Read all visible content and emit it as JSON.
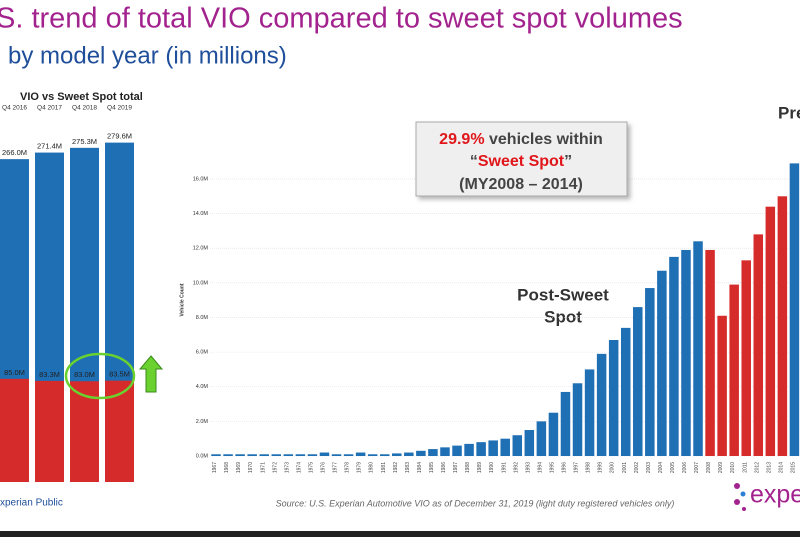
{
  "slide": {
    "title": "S. trend of total VIO compared to sweet spot volumes",
    "subtitle": "by model year (in millions)",
    "footer": "xperian Public",
    "logo": "exper",
    "source": "Source: U.S. Experian Automotive VIO as of December 31, 2019  (light duty registered vehicles only)"
  },
  "chart_data": [
    {
      "type": "bar",
      "title": "VIO vs Sweet Spot total",
      "categories": [
        "Q4 2016",
        "Q4 2017",
        "Q4 2018",
        "Q4 2019"
      ],
      "ylim": [
        0,
        290
      ],
      "series": [
        {
          "color": "#1f6fb5",
          "values": [
            266.0,
            271.4,
            275.3,
            279.6
          ],
          "value_labels": [
            "266.0M",
            "271.4M",
            "275.3M",
            "279.6M"
          ]
        },
        {
          "color": "#d62b2b",
          "values": [
            85.0,
            83.3,
            83.0,
            83.5
          ],
          "value_labels": [
            "85.0M",
            "83.3M",
            "83.0M",
            "83.5M"
          ]
        }
      ]
    },
    {
      "type": "bar",
      "ylabel": "Vehicle Count",
      "categories": [
        "1967",
        "1968",
        "1969",
        "1970",
        "1971",
        "1972",
        "1973",
        "1974",
        "1975",
        "1976",
        "1977",
        "1978",
        "1979",
        "1980",
        "1981",
        "1982",
        "1983",
        "1984",
        "1985",
        "1986",
        "1987",
        "1988",
        "1989",
        "1990",
        "1991",
        "1992",
        "1993",
        "1994",
        "1995",
        "1996",
        "1997",
        "1998",
        "1999",
        "2000",
        "2001",
        "2002",
        "2003",
        "2004",
        "2005",
        "2006",
        "2007",
        "2008",
        "2009",
        "2010",
        "2011",
        "2012",
        "2013",
        "2014",
        "2015"
      ],
      "values": [
        0.1,
        0.1,
        0.1,
        0.1,
        0.1,
        0.1,
        0.1,
        0.1,
        0.1,
        0.2,
        0.1,
        0.1,
        0.2,
        0.1,
        0.1,
        0.15,
        0.2,
        0.3,
        0.4,
        0.5,
        0.6,
        0.7,
        0.8,
        0.9,
        1.0,
        1.2,
        1.5,
        2.0,
        2.5,
        3.7,
        4.2,
        5.0,
        5.9,
        6.7,
        7.4,
        8.6,
        9.7,
        10.7,
        11.5,
        11.9,
        12.4,
        11.9,
        8.1,
        9.9,
        11.3,
        12.8,
        14.4,
        15.0,
        16.9
      ],
      "colors": [
        "#1f6fb5",
        "#1f6fb5",
        "#1f6fb5",
        "#1f6fb5",
        "#1f6fb5",
        "#1f6fb5",
        "#1f6fb5",
        "#1f6fb5",
        "#1f6fb5",
        "#1f6fb5",
        "#1f6fb5",
        "#1f6fb5",
        "#1f6fb5",
        "#1f6fb5",
        "#1f6fb5",
        "#1f6fb5",
        "#1f6fb5",
        "#1f6fb5",
        "#1f6fb5",
        "#1f6fb5",
        "#1f6fb5",
        "#1f6fb5",
        "#1f6fb5",
        "#1f6fb5",
        "#1f6fb5",
        "#1f6fb5",
        "#1f6fb5",
        "#1f6fb5",
        "#1f6fb5",
        "#1f6fb5",
        "#1f6fb5",
        "#1f6fb5",
        "#1f6fb5",
        "#1f6fb5",
        "#1f6fb5",
        "#1f6fb5",
        "#1f6fb5",
        "#1f6fb5",
        "#1f6fb5",
        "#1f6fb5",
        "#1f6fb5",
        "#d62b2b",
        "#d62b2b",
        "#d62b2b",
        "#d62b2b",
        "#d62b2b",
        "#d62b2b",
        "#d62b2b",
        "#1f6fb5"
      ],
      "ylim": [
        0,
        17.5
      ],
      "yticks": [
        {
          "value": 0,
          "label": "0.0M"
        },
        {
          "value": 2,
          "label": "2.0M"
        },
        {
          "value": 4,
          "label": "4.0M"
        },
        {
          "value": 6,
          "label": "6.0M"
        },
        {
          "value": 8,
          "label": "8.0M"
        },
        {
          "value": 10,
          "label": "10.0M"
        },
        {
          "value": 12,
          "label": "12.0M"
        },
        {
          "value": 14,
          "label": "14.0M"
        },
        {
          "value": 16,
          "label": "16.0M"
        }
      ],
      "grid": true,
      "annotations": {
        "pct": "29.9%",
        "text1": " vehicles within",
        "q1": "“",
        "term": "Sweet Spot",
        "q2": "”",
        "range": "(MY2008 – 2014)",
        "post1": "Post-Sweet",
        "post2": "Spot",
        "pre": "Pre"
      }
    }
  ]
}
